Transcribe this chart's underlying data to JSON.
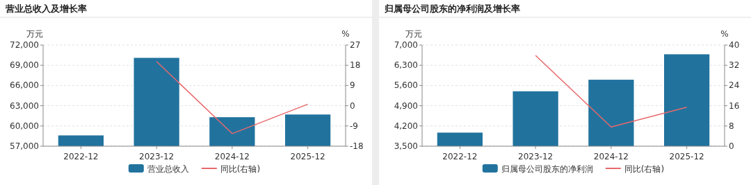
{
  "chart_data": [
    {
      "type": "bar",
      "title": "营业总收入及增长率",
      "categories": [
        "2022-12",
        "2023-12",
        "2024-12",
        "2025-12"
      ],
      "series": [
        {
          "name": "营业总收入",
          "color": "#21739e",
          "values": [
            58600,
            70100,
            61300,
            61700
          ]
        },
        {
          "name": "同比(右轴)",
          "type": "line",
          "axis": "y2",
          "color": "#e8686b",
          "values": [
            null,
            19.7,
            -12.4,
            0.7
          ]
        }
      ],
      "ylabel": "万元",
      "y2label": "%",
      "ylim": [
        57000,
        72000
      ],
      "yticks": [
        {
          "value": 57000,
          "label": "57,000"
        },
        {
          "value": 60000,
          "label": "60,000"
        },
        {
          "value": 63000,
          "label": "63,000"
        },
        {
          "value": 66000,
          "label": "66,000"
        },
        {
          "value": 69000,
          "label": "69,000"
        },
        {
          "value": 72000,
          "label": "72,000"
        }
      ],
      "y2lim": [
        -18,
        27
      ],
      "y2ticks": [
        {
          "value": -18,
          "label": "-18"
        },
        {
          "value": -9,
          "label": "-9"
        },
        0,
        9,
        18,
        27
      ],
      "grid": "y",
      "legend": "bottom"
    },
    {
      "type": "bar",
      "title": "归属母公司股东的净利润及增长率",
      "categories": [
        "2022-12",
        "2023-12",
        "2024-12",
        "2025-12"
      ],
      "series": [
        {
          "name": "归属母公司股东的净利润",
          "color": "#21739e",
          "values": [
            3970,
            5400,
            5800,
            6680
          ]
        },
        {
          "name": "同比(右轴)",
          "type": "line",
          "axis": "y2",
          "color": "#e8686b",
          "values": [
            null,
            35.9,
            7.6,
            15.4
          ]
        }
      ],
      "ylabel": "万元",
      "y2label": "%",
      "ylim": [
        3500,
        7000
      ],
      "yticks": [
        {
          "value": 3500,
          "label": "3,500"
        },
        {
          "value": 4200,
          "label": "4,200"
        },
        {
          "value": 4900,
          "label": "4,900"
        },
        {
          "value": 5600,
          "label": "5,600"
        },
        {
          "value": 6300,
          "label": "6,300"
        },
        {
          "value": 7000,
          "label": "7,000"
        }
      ],
      "y2lim": [
        0,
        40
      ],
      "y2ticks": [
        0,
        8,
        16,
        24,
        32,
        40
      ],
      "grid": "y",
      "legend": "bottom"
    }
  ]
}
